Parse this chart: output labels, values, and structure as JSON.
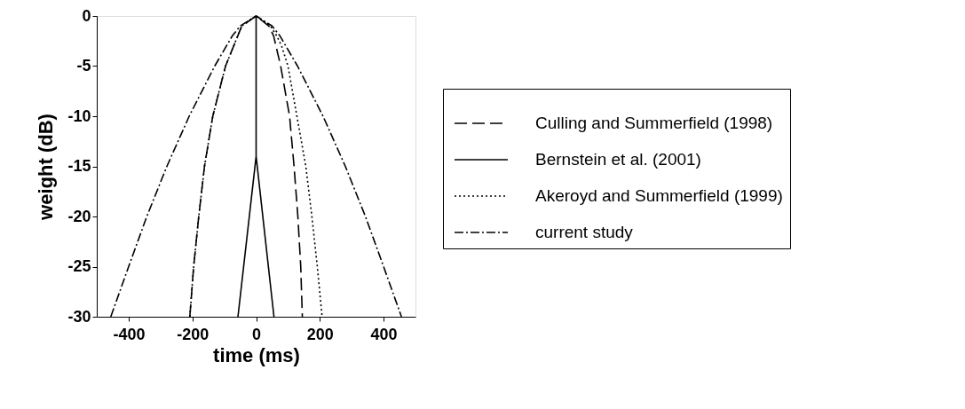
{
  "chart_data": {
    "type": "line",
    "xlabel": "time (ms)",
    "ylabel": "weight (dB)",
    "xlim": [
      -500,
      500
    ],
    "ylim": [
      -30,
      0
    ],
    "xticks": [
      -400,
      -200,
      0,
      200,
      400
    ],
    "yticks": [
      0,
      -5,
      -10,
      -15,
      -20,
      -25,
      -30
    ],
    "grid": false,
    "legend": "right",
    "marker": "none",
    "series": [
      {
        "name": "Culling and Summerfield (1998)",
        "color": "#000000",
        "line_style": "dashed",
        "x": [
          -208,
          -196,
          -180,
          -162,
          -136,
          -96,
          -45,
          0,
          40,
          55,
          77,
          105,
          119,
          131,
          140,
          145
        ],
        "values": [
          -30,
          -25,
          -20,
          -15,
          -10,
          -5,
          -1,
          0,
          -1,
          -2,
          -5,
          -10,
          -15,
          -20,
          -25,
          -30
        ]
      },
      {
        "name": "Bernstein et al. (2001)",
        "color": "#000000",
        "line_style": "solid",
        "x": [
          -57,
          0,
          0,
          0,
          56
        ],
        "values": [
          -30,
          -14,
          0,
          -14,
          -30
        ]
      },
      {
        "name": "Akeroyd and Summerfield (1999)",
        "color": "#000000",
        "line_style": "dotted",
        "x": [
          -208,
          -196,
          -180,
          -162,
          -136,
          -96,
          -45,
          0,
          45,
          65,
          80,
          100,
          128,
          156,
          175,
          192,
          207
        ],
        "values": [
          -30,
          -25,
          -20,
          -15,
          -10,
          -5,
          -1,
          0,
          -1,
          -2,
          -3,
          -5,
          -10,
          -15,
          -20,
          -25,
          -30
        ]
      },
      {
        "name": "current study",
        "color": "#000000",
        "line_style": "dashdot",
        "x": [
          -456,
          -400,
          -343,
          -280,
          -210,
          -130,
          -75,
          -50,
          0,
          50,
          75,
          130,
          210,
          280,
          343,
          400,
          456
        ],
        "values": [
          -30,
          -25,
          -20,
          -15,
          -10,
          -5,
          -2,
          -1,
          0,
          -1,
          -2,
          -5,
          -10,
          -15,
          -20,
          -25,
          -30
        ]
      }
    ]
  }
}
